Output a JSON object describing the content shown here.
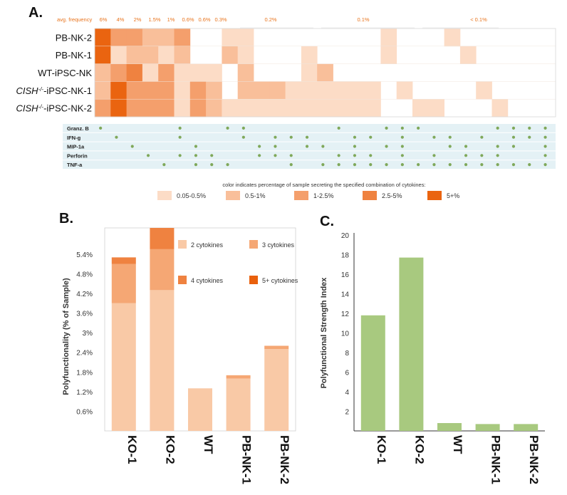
{
  "panel_labels": {
    "a": "A.",
    "b": "B.",
    "c": "C."
  },
  "heatmap": {
    "avg_label": "avg. frequency",
    "freq_labels": [
      "6%",
      "4%",
      "2%",
      "1.5%",
      "1%",
      "0.6%",
      "0.6%",
      "0.3%",
      "0.2%",
      "0.1%",
      "< 0.1%"
    ],
    "rows": [
      {
        "pre": "PB-NK-2",
        "sup": "",
        "post": ""
      },
      {
        "pre": "PB-NK-1",
        "sup": "",
        "post": ""
      },
      {
        "pre": "WT-iPSC-NK",
        "sup": "",
        "post": ""
      },
      {
        "pre": "CISH",
        "sup": "-/-",
        "post": "-iPSC-NK-1"
      },
      {
        "pre": "CISH",
        "sup": "-/-",
        "post": "-iPSC-NK-2"
      }
    ],
    "cytokines": [
      "Granz. B",
      "IFN-g",
      "MIP-1a",
      "Perforin",
      "TNF-a"
    ],
    "legend_title": "color indicates percentage of sample secreting the specified combination of cytokines:",
    "legend": [
      {
        "label": "0.05-0.5%",
        "color": "#fcdcc6"
      },
      {
        "label": "0.5-1%",
        "color": "#f9bf9a"
      },
      {
        "label": "1-2.5%",
        "color": "#f49f6c"
      },
      {
        "label": "2.5-5%",
        "color": "#ef8240"
      },
      {
        "label": "5+%",
        "color": "#ea6410"
      }
    ],
    "levels": [
      [
        5,
        3,
        3,
        2,
        2,
        3,
        0,
        0,
        1,
        1,
        0,
        0,
        0,
        0,
        0,
        0,
        0,
        0,
        1,
        0,
        0,
        0,
        1,
        0,
        0,
        0,
        0,
        0,
        0
      ],
      [
        5,
        1,
        2,
        2,
        1,
        2,
        0,
        0,
        2,
        1,
        0,
        0,
        0,
        1,
        0,
        0,
        0,
        0,
        1,
        0,
        0,
        0,
        0,
        1,
        0,
        0,
        0,
        0,
        0
      ],
      [
        2,
        3,
        4,
        1,
        3,
        1,
        1,
        1,
        0,
        2,
        0,
        0,
        0,
        1,
        2,
        0,
        0,
        0,
        0,
        0,
        0,
        0,
        0,
        0,
        0,
        0,
        0,
        0,
        0
      ],
      [
        2,
        5,
        3,
        3,
        3,
        1,
        3,
        2,
        0,
        2,
        2,
        2,
        1,
        1,
        1,
        1,
        1,
        1,
        0,
        1,
        0,
        0,
        0,
        0,
        1,
        0,
        0,
        0,
        0
      ],
      [
        3,
        5,
        3,
        3,
        3,
        1,
        3,
        2,
        1,
        1,
        1,
        1,
        1,
        1,
        1,
        1,
        1,
        1,
        0,
        0,
        1,
        1,
        0,
        0,
        0,
        1,
        0,
        0,
        0
      ]
    ],
    "dots": {
      "Granz. B": [
        0,
        5,
        8,
        9,
        15,
        18,
        19,
        20,
        25,
        26,
        27,
        28
      ],
      "IFN-g": [
        1,
        5,
        9,
        11,
        12,
        13,
        16,
        17,
        19,
        21,
        22,
        24,
        26,
        27,
        28
      ],
      "MIP-1a": [
        2,
        6,
        10,
        11,
        13,
        14,
        16,
        18,
        19,
        22,
        23,
        25,
        26,
        28
      ],
      "Perforin": [
        3,
        5,
        6,
        7,
        10,
        11,
        12,
        15,
        16,
        17,
        19,
        21,
        23,
        24,
        25,
        28
      ],
      "TNF-a": [
        4,
        6,
        7,
        8,
        12,
        14,
        15,
        16,
        17,
        18,
        19,
        20,
        21,
        22,
        23,
        24,
        25,
        26,
        27,
        28
      ]
    }
  },
  "chart_b": {
    "type": "bar",
    "stacked": true,
    "title": "",
    "ylabel": "Polyfunctionality (% of Sample)",
    "yticks": [
      "0.6%",
      "1.2%",
      "1.8%",
      "2.4%",
      "3%",
      "3.6%",
      "4.2%",
      "4.8%",
      "5.4%"
    ],
    "ylim": [
      0,
      6.2
    ],
    "categories": [
      "KO-1",
      "KO-2",
      "WT",
      "PB-NK-1",
      "PB-NK-2"
    ],
    "series": [
      {
        "name": "2 cytokines",
        "color": "#f9c9a6",
        "values": [
          3.9,
          4.3,
          1.3,
          1.6,
          2.5
        ]
      },
      {
        "name": "3 cytokines",
        "color": "#f5a774",
        "values": [
          1.2,
          1.25,
          0,
          0.1,
          0.1
        ]
      },
      {
        "name": "4 cytokines",
        "color": "#ef8240",
        "values": [
          0.2,
          0.65,
          0,
          0,
          0
        ]
      },
      {
        "name": "5+ cytokines",
        "color": "#e9600c",
        "values": [
          0,
          0,
          0,
          0,
          0
        ]
      }
    ]
  },
  "chart_c": {
    "type": "bar",
    "title": "",
    "ylabel": "Polyfunctional Strength Index",
    "yticks": [
      "2",
      "4",
      "6",
      "8",
      "10",
      "12",
      "14",
      "16",
      "18",
      "20"
    ],
    "ylim": [
      0,
      20
    ],
    "categories": [
      "KO-1",
      "KO-2",
      "WT",
      "PB-NK-1",
      "PB-NK-2"
    ],
    "values": [
      11.8,
      17.7,
      0.8,
      0.7,
      0.7
    ],
    "color": "#a8c97f"
  }
}
